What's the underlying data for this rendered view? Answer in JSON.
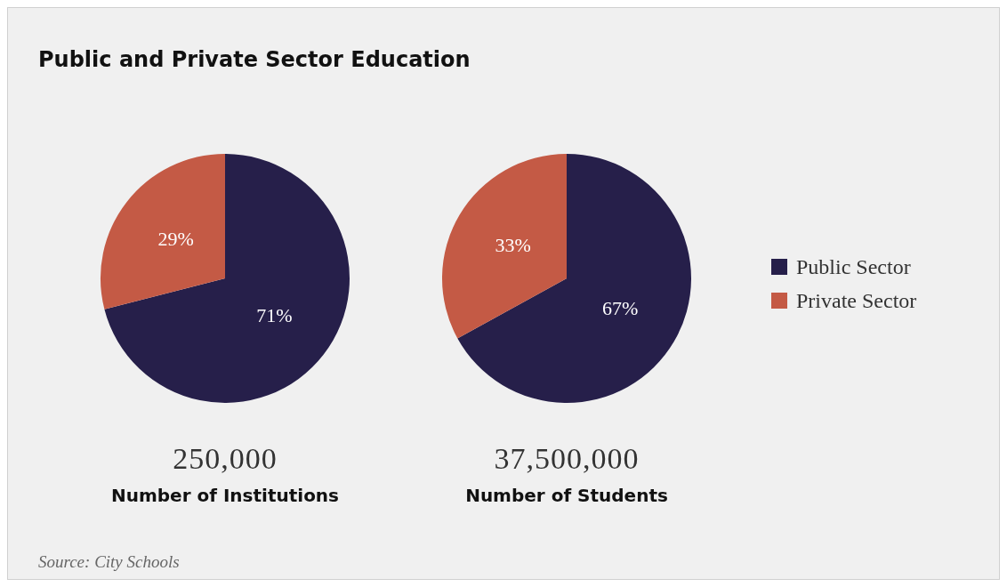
{
  "chart_data": [
    {
      "type": "pie",
      "title": "Public and Private Sector Education",
      "subtitle": "250,000",
      "xlabel": "Number of Institutions",
      "categories": [
        null,
        null
      ],
      "values": [
        71,
        29
      ],
      "value_labels": [
        "71%",
        "29%"
      ],
      "colors": [
        "#261f4a",
        "#c45a45"
      ],
      "legend": false
    },
    {
      "type": "pie",
      "subtitle": "37,500,000",
      "xlabel": "Number of Students",
      "categories": [
        "Public Sector",
        "Private Sector"
      ],
      "values": [
        67,
        33
      ],
      "value_labels": [
        "67%",
        "33%"
      ],
      "colors": [
        "#261f4a",
        "#c45a45"
      ],
      "legend": "right",
      "annotations": [
        "Source: City Schools"
      ]
    }
  ]
}
